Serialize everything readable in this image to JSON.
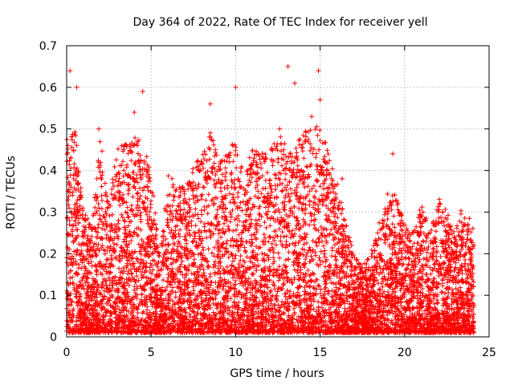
{
  "chart_data": {
    "type": "scatter",
    "title": "Day 364 of 2022, Rate Of TEC Index for receiver yell",
    "xlabel": "GPS time / hours",
    "ylabel": "ROTI / TECUs",
    "xlim": [
      0,
      25
    ],
    "ylim": [
      0,
      0.7
    ],
    "x_ticks": [
      "0",
      "5",
      "10",
      "15",
      "20",
      "25"
    ],
    "y_ticks": [
      "0",
      "0.1",
      "0.2",
      "0.3",
      "0.4",
      "0.5",
      "0.6",
      "0.7"
    ],
    "grid": true,
    "marker": "+",
    "series": [
      {
        "name": "ROTI",
        "color": "#ff0000",
        "outliers": [
          {
            "x": 0.2,
            "y": 0.64
          },
          {
            "x": 0.6,
            "y": 0.6
          },
          {
            "x": 4.5,
            "y": 0.59
          },
          {
            "x": 10.0,
            "y": 0.6
          },
          {
            "x": 13.1,
            "y": 0.65
          },
          {
            "x": 14.9,
            "y": 0.64
          },
          {
            "x": 13.5,
            "y": 0.61
          },
          {
            "x": 8.5,
            "y": 0.56
          },
          {
            "x": 15.0,
            "y": 0.57
          },
          {
            "x": 19.3,
            "y": 0.44
          },
          {
            "x": 16.3,
            "y": 0.38
          },
          {
            "x": 4.0,
            "y": 0.54
          },
          {
            "x": 1.9,
            "y": 0.5
          },
          {
            "x": 14.5,
            "y": 0.53
          },
          {
            "x": 12.6,
            "y": 0.5
          }
        ],
        "envelope": [
          {
            "x": 0.0,
            "y": 0.48
          },
          {
            "x": 0.5,
            "y": 0.5
          },
          {
            "x": 1.0,
            "y": 0.3
          },
          {
            "x": 1.5,
            "y": 0.27
          },
          {
            "x": 2.0,
            "y": 0.49
          },
          {
            "x": 2.5,
            "y": 0.33
          },
          {
            "x": 3.0,
            "y": 0.45
          },
          {
            "x": 3.5,
            "y": 0.47
          },
          {
            "x": 4.0,
            "y": 0.48
          },
          {
            "x": 4.5,
            "y": 0.47
          },
          {
            "x": 5.0,
            "y": 0.4
          },
          {
            "x": 5.5,
            "y": 0.2
          },
          {
            "x": 6.0,
            "y": 0.39
          },
          {
            "x": 6.5,
            "y": 0.37
          },
          {
            "x": 7.0,
            "y": 0.37
          },
          {
            "x": 7.5,
            "y": 0.41
          },
          {
            "x": 8.0,
            "y": 0.45
          },
          {
            "x": 8.5,
            "y": 0.5
          },
          {
            "x": 9.0,
            "y": 0.42
          },
          {
            "x": 9.5,
            "y": 0.44
          },
          {
            "x": 10.0,
            "y": 0.49
          },
          {
            "x": 10.5,
            "y": 0.38
          },
          {
            "x": 11.0,
            "y": 0.47
          },
          {
            "x": 11.5,
            "y": 0.44
          },
          {
            "x": 12.0,
            "y": 0.45
          },
          {
            "x": 12.5,
            "y": 0.49
          },
          {
            "x": 13.0,
            "y": 0.47
          },
          {
            "x": 13.5,
            "y": 0.45
          },
          {
            "x": 14.0,
            "y": 0.5
          },
          {
            "x": 14.5,
            "y": 0.5
          },
          {
            "x": 15.0,
            "y": 0.52
          },
          {
            "x": 15.5,
            "y": 0.44
          },
          {
            "x": 16.0,
            "y": 0.38
          },
          {
            "x": 16.5,
            "y": 0.28
          },
          {
            "x": 17.0,
            "y": 0.2
          },
          {
            "x": 17.5,
            "y": 0.17
          },
          {
            "x": 18.0,
            "y": 0.2
          },
          {
            "x": 18.5,
            "y": 0.28
          },
          {
            "x": 19.0,
            "y": 0.35
          },
          {
            "x": 19.5,
            "y": 0.34
          },
          {
            "x": 20.0,
            "y": 0.27
          },
          {
            "x": 20.5,
            "y": 0.25
          },
          {
            "x": 21.0,
            "y": 0.33
          },
          {
            "x": 21.5,
            "y": 0.25
          },
          {
            "x": 22.0,
            "y": 0.35
          },
          {
            "x": 22.5,
            "y": 0.3
          },
          {
            "x": 23.0,
            "y": 0.25
          },
          {
            "x": 23.5,
            "y": 0.34
          },
          {
            "x": 24.0,
            "y": 0.27
          }
        ],
        "baseline_min": 0.01,
        "points_per_hour": 320,
        "x_range": [
          0,
          24.1
        ]
      }
    ]
  }
}
